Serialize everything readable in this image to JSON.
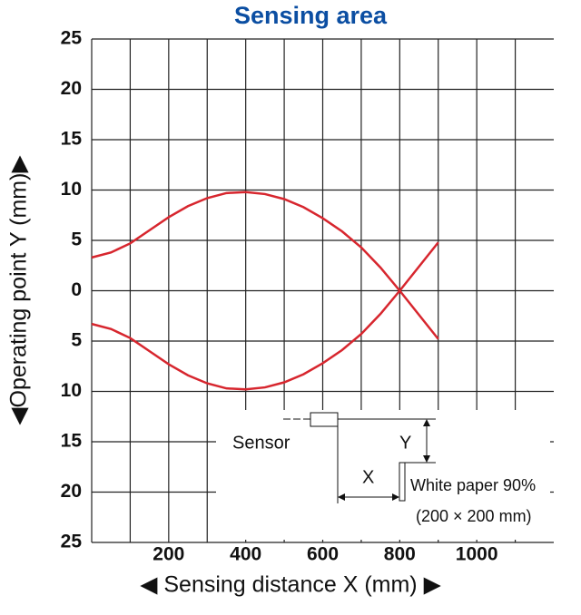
{
  "chart_data": {
    "type": "line",
    "title": "Sensing area",
    "xlabel": "◀ Sensing distance X (mm) ▶",
    "ylabel": "◀Operating point Y (mm)▶",
    "x": [
      0,
      50,
      100,
      150,
      200,
      250,
      300,
      350,
      400,
      450,
      500,
      550,
      600,
      650,
      700,
      750,
      800,
      850,
      900
    ],
    "series": [
      {
        "color": "#d7262e",
        "values": [
          3.3,
          3.8,
          4.7,
          6.0,
          7.3,
          8.4,
          9.2,
          9.7,
          9.8,
          9.6,
          9.1,
          8.3,
          7.2,
          5.9,
          4.3,
          2.3,
          0,
          -2.4,
          -4.8
        ]
      },
      {
        "color": "#d7262e",
        "values": [
          -3.3,
          -3.8,
          -4.7,
          -6.0,
          -7.3,
          -8.4,
          -9.2,
          -9.7,
          -9.8,
          -9.6,
          -9.1,
          -8.3,
          -7.2,
          -5.9,
          -4.3,
          -2.3,
          0,
          2.4,
          4.8
        ]
      }
    ],
    "xlim": [
      0,
      1200
    ],
    "xticks": [
      200,
      400,
      600,
      800,
      1000
    ],
    "xminorticks": [
      100,
      300,
      500,
      700,
      900,
      1100
    ],
    "ylim": [
      -25,
      25
    ],
    "yticks": [
      {
        "value": 25,
        "label": "25"
      },
      {
        "value": 20,
        "label": "20"
      },
      {
        "value": 15,
        "label": "15"
      },
      {
        "value": 10,
        "label": "10"
      },
      {
        "value": 5,
        "label": "5"
      },
      {
        "value": 0,
        "label": "0"
      },
      {
        "value": -5,
        "label": "5"
      },
      {
        "value": -10,
        "label": "10"
      },
      {
        "value": -15,
        "label": "15"
      },
      {
        "value": -20,
        "label": "20"
      },
      {
        "value": -25,
        "label": "25"
      }
    ],
    "grid": true,
    "annotations": {
      "sensor": "Sensor",
      "x": "X",
      "y": "Y",
      "paper": "White paper 90%",
      "paper_size": "(200 × 200 mm)"
    }
  }
}
